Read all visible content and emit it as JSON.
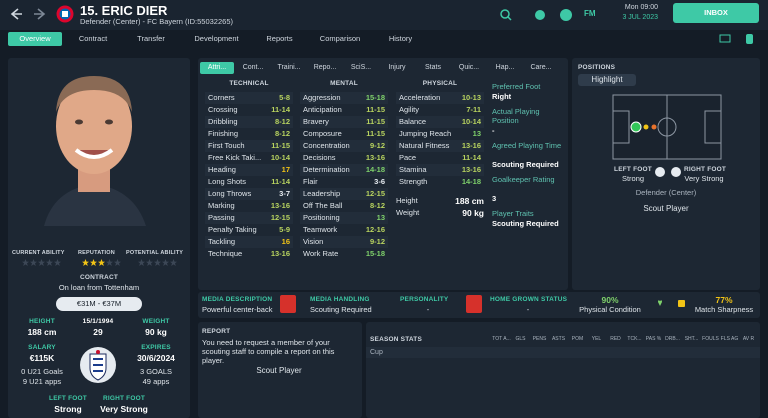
{
  "header": {
    "name": "15. ERIC DIER",
    "subtitle": "Defender (Center) - FC Bayern (ID:55032265)",
    "fm": "FM",
    "time": "Mon 09:00",
    "date": "3 JUL 2023",
    "inbox": "INBOX"
  },
  "nav": [
    "Overview",
    "Contract",
    "Transfer",
    "Development",
    "Reports",
    "Comparison",
    "History"
  ],
  "profile": {
    "current_ability": "CURRENT ABILITY",
    "reputation": "REPUTATION",
    "potential_ability": "POTENTIAL ABILITY",
    "contract_label": "CONTRACT",
    "contract": "On loan from Tottenham",
    "value": "€31M - €37M",
    "height_label": "HEIGHT",
    "height": "188 cm",
    "dob": "15/1/1994",
    "age": "29",
    "weight_label": "WEIGHT",
    "weight": "90 kg",
    "salary_label": "SALARY",
    "salary": "€115K",
    "u21_goals": "0 U21 Goals",
    "u21_apps": "9 U21 apps",
    "expires_label": "EXPIRES",
    "expires": "30/6/2024",
    "goals": "3 GOALS",
    "apps": "49 apps",
    "left_foot_label": "LEFT FOOT",
    "left_foot": "Strong",
    "right_foot_label": "RIGHT FOOT",
    "right_foot": "Very Strong"
  },
  "tabs": [
    "Attri...",
    "Cont...",
    "Traini...",
    "Repo...",
    "SciS...",
    "Injury",
    "Stats",
    "Quic...",
    "Hap...",
    "Care..."
  ],
  "attributes": {
    "technical": {
      "title": "TECHNICAL",
      "rows": [
        [
          "Corners",
          "5-8"
        ],
        [
          "Crossing",
          "11-14"
        ],
        [
          "Dribbling",
          "8-12"
        ],
        [
          "Finishing",
          "8-12"
        ],
        [
          "First Touch",
          "11-15"
        ],
        [
          "Free Kick Taki...",
          "10-14"
        ],
        [
          "Heading",
          "17"
        ],
        [
          "Long Shots",
          "11-14"
        ],
        [
          "Long Throws",
          "3-7"
        ],
        [
          "Marking",
          "13-16"
        ],
        [
          "Passing",
          "12-15"
        ],
        [
          "Penalty Taking",
          "5-9"
        ],
        [
          "Tackling",
          "16"
        ],
        [
          "Technique",
          "13-16"
        ]
      ]
    },
    "mental": {
      "title": "MENTAL",
      "rows": [
        [
          "Aggression",
          "15-18"
        ],
        [
          "Anticipation",
          "11-15"
        ],
        [
          "Bravery",
          "11-15"
        ],
        [
          "Composure",
          "11-15"
        ],
        [
          "Concentration",
          "9-12"
        ],
        [
          "Decisions",
          "13-16"
        ],
        [
          "Determination",
          "14-18"
        ],
        [
          "Flair",
          "3-6"
        ],
        [
          "Leadership",
          "12-15"
        ],
        [
          "Off The Ball",
          "8-12"
        ],
        [
          "Positioning",
          "13"
        ],
        [
          "Teamwork",
          "12-16"
        ],
        [
          "Vision",
          "9-12"
        ],
        [
          "Work Rate",
          "15-18"
        ]
      ]
    },
    "physical": {
      "title": "PHYSICAL",
      "rows": [
        [
          "Acceleration",
          "10-13"
        ],
        [
          "Agility",
          "7-11"
        ],
        [
          "Balance",
          "10-14"
        ],
        [
          "Jumping Reach",
          "13"
        ],
        [
          "Natural Fitness",
          "13-16"
        ],
        [
          "Pace",
          "11-14"
        ],
        [
          "Stamina",
          "13-16"
        ],
        [
          "Strength",
          "14-18"
        ]
      ]
    },
    "height_label": "Height",
    "height": "188 cm",
    "weight_label": "Weight",
    "weight": "90 kg"
  },
  "info": [
    {
      "label": "Preferred Foot",
      "value": "Right"
    },
    {
      "label": "Actual Playing Position",
      "value": "-"
    },
    {
      "label": "Agreed Playing Time",
      "value": "Scouting Required"
    },
    {
      "label": "Goalkeeper Rating",
      "value": "3"
    },
    {
      "label": "Player Traits",
      "value": "Scouting Required"
    }
  ],
  "positions": {
    "title": "POSITIONS",
    "highlight": "Highlight",
    "left_foot_label": "LEFT FOOT",
    "left_foot": "Strong",
    "right_foot_label": "RIGHT FOOT",
    "right_foot": "Very Strong",
    "role": "Defender (Center)",
    "button": "Scout Player"
  },
  "strip": {
    "media_description_label": "MEDIA DESCRIPTION",
    "media_description": "Powerful center-back",
    "media_handling_label": "MEDIA HANDLING",
    "media_handling": "Scouting Required",
    "personality_label": "PERSONALITY",
    "personality": "-",
    "home_grown_label": "HOME GROWN STATUS",
    "home_grown": "-",
    "condition": "90%",
    "condition_label": "Physical Condition",
    "sharpness": "77%",
    "sharpness_label": "Match Sharpness"
  },
  "report": {
    "title": "REPORT",
    "text": "You need to request a member of your scouting staff to compile a report on this player.",
    "button": "Scout Player"
  },
  "season": {
    "title": "SEASON STATS",
    "columns": [
      "TOT A...",
      "GLS",
      "PENS",
      "ASTS",
      "POM",
      "YEL",
      "RED",
      "TCK...",
      "PAS %",
      "DRB...",
      "SHT...",
      "FOULS",
      "FLS AG",
      "AV R"
    ],
    "rows": [
      "Cup"
    ]
  }
}
